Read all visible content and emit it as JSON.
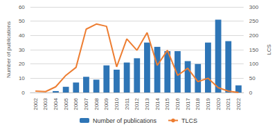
{
  "chart_data": {
    "type": "bar",
    "categories": [
      "2002",
      "2003",
      "2004",
      "2005",
      "2006",
      "2007",
      "2008",
      "2009",
      "2010",
      "2011",
      "2012",
      "2013",
      "2014",
      "2015",
      "2016",
      "2017",
      "2018",
      "2019",
      "2020",
      "2021",
      "2022"
    ],
    "series": [
      {
        "name": "Number of publications",
        "type": "bar",
        "color": "#2e75b6",
        "values": [
          0,
          0,
          1,
          4,
          7,
          11,
          9,
          19,
          16,
          21,
          24,
          35,
          32,
          29,
          29,
          22,
          20,
          35,
          51,
          36,
          5
        ]
      },
      {
        "name": "TLCS",
        "type": "line",
        "axis": "y2",
        "color": "#ed7d31",
        "values": [
          5,
          3,
          20,
          60,
          88,
          222,
          240,
          232,
          90,
          188,
          148,
          210,
          95,
          148,
          60,
          85,
          38,
          50,
          17,
          5,
          0
        ]
      }
    ],
    "y_label": "Number of publications",
    "y2_label": "LCS",
    "ylim": [
      0,
      60
    ],
    "yticks": [
      0,
      10,
      20,
      30,
      40,
      50,
      60
    ],
    "y2lim": [
      0,
      300
    ],
    "y2ticks": [
      0,
      50,
      100,
      150,
      200,
      250,
      300
    ],
    "grid": true,
    "legend": "bottom"
  }
}
